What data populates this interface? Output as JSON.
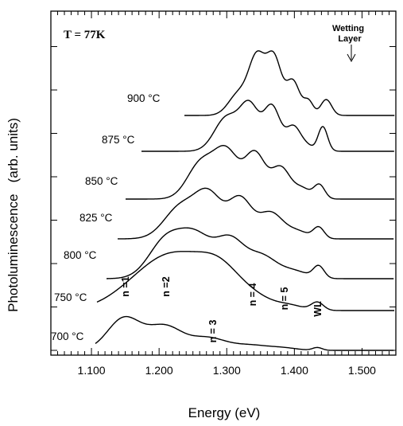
{
  "chart_data": {
    "type": "line",
    "title": "",
    "xlabel": "Energy (eV)",
    "ylabel": "Photoluminescence   (arb. units)",
    "xlim": [
      1.04,
      1.55
    ],
    "x_ticks": [
      "1.100",
      "1.200",
      "1.300",
      "1.400",
      "1.500"
    ],
    "temperature_label": "T = 77K",
    "grid": false,
    "series": [
      {
        "name": "700 °C",
        "offset": 0.0,
        "peaks": [
          [
            1.148,
            0.8,
            0.024
          ],
          [
            1.208,
            0.6,
            0.026
          ],
          [
            1.272,
            0.3,
            0.026
          ],
          [
            1.335,
            0.13,
            0.028
          ],
          [
            1.385,
            0.05,
            0.02
          ],
          [
            1.434,
            0.07,
            0.007
          ]
        ]
      },
      {
        "name": "750 °C",
        "offset": 1.0,
        "peaks": [
          [
            1.195,
            0.95,
            0.05
          ],
          [
            1.24,
            0.65,
            0.04
          ],
          [
            1.29,
            0.8,
            0.03
          ],
          [
            1.34,
            0.3,
            0.03
          ],
          [
            1.395,
            0.1,
            0.02
          ],
          [
            1.434,
            0.2,
            0.009
          ]
        ]
      },
      {
        "name": "800 °C",
        "offset": 1.8,
        "peaks": [
          [
            1.21,
            0.95,
            0.025
          ],
          [
            1.255,
            0.98,
            0.024
          ],
          [
            1.305,
            0.92,
            0.021
          ],
          [
            1.352,
            0.55,
            0.022
          ],
          [
            1.4,
            0.18,
            0.02
          ],
          [
            1.436,
            0.3,
            0.008
          ]
        ]
      },
      {
        "name": "825 °C",
        "offset": 2.8,
        "peaks": [
          [
            1.232,
            0.8,
            0.024
          ],
          [
            1.274,
            1.05,
            0.02
          ],
          [
            1.32,
            0.98,
            0.017
          ],
          [
            1.365,
            0.65,
            0.018
          ],
          [
            1.405,
            0.18,
            0.016
          ],
          [
            1.436,
            0.28,
            0.008
          ]
        ]
      },
      {
        "name": "850 °C",
        "offset": 3.8,
        "peaks": [
          [
            1.262,
            0.9,
            0.02
          ],
          [
            1.3,
            1.15,
            0.018
          ],
          [
            1.342,
            1.12,
            0.015
          ],
          [
            1.38,
            0.78,
            0.014
          ],
          [
            1.412,
            0.25,
            0.012
          ],
          [
            1.437,
            0.35,
            0.008
          ]
        ]
      },
      {
        "name": "875 °C",
        "offset": 5.0,
        "peaks": [
          [
            1.3,
            0.85,
            0.018
          ],
          [
            1.334,
            1.1,
            0.014
          ],
          [
            1.367,
            1.1,
            0.012
          ],
          [
            1.399,
            0.62,
            0.011
          ],
          [
            1.42,
            0.1,
            0.008
          ],
          [
            1.442,
            0.62,
            0.007
          ]
        ]
      },
      {
        "name": "900 °C",
        "offset": 5.9,
        "peaks": [
          [
            1.318,
            0.55,
            0.015
          ],
          [
            1.345,
            1.4,
            0.012
          ],
          [
            1.37,
            1.4,
            0.011
          ],
          [
            1.398,
            0.85,
            0.01
          ],
          [
            1.421,
            0.35,
            0.007
          ],
          [
            1.447,
            0.4,
            0.008
          ]
        ]
      }
    ],
    "peak_labels": [
      "n =1",
      "n =2",
      "n = 3",
      "n = 4",
      "n = 5",
      "WL"
    ],
    "annotation": {
      "text_line1": "Wetting",
      "text_line2": "Layer"
    }
  }
}
